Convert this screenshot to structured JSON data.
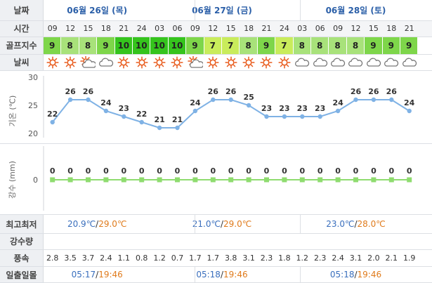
{
  "labels": {
    "date": "날짜",
    "time": "시간",
    "golf": "골프지수",
    "weather": "날씨",
    "temp_axis": "기온 (℃)",
    "rain_axis": "강수 (mm)",
    "minmax": "최고최저",
    "rain_amount": "강수량",
    "wind": "풍속",
    "sun": "일출일몰"
  },
  "days": [
    {
      "date": "06월 26일 (목)",
      "min": "20.9℃",
      "max": "29.0℃",
      "sunrise": "05:17",
      "sunset": "19:46"
    },
    {
      "date": "06월 27일 (금)",
      "min": "21.0℃",
      "max": "29.0℃",
      "sunrise": "05:18",
      "sunset": "19:46"
    },
    {
      "date": "06월 28일 (토)",
      "min": "23.0℃",
      "max": "28.0℃",
      "sunrise": "05:18",
      "sunset": "19:46"
    }
  ],
  "hours": [
    "09",
    "12",
    "15",
    "18",
    "21",
    "24",
    "03",
    "06",
    "09",
    "12",
    "15",
    "18",
    "21",
    "24",
    "03",
    "06",
    "09",
    "12",
    "15",
    "18",
    "21"
  ],
  "golf_index": [
    "9",
    "8",
    "8",
    "9",
    "10",
    "10",
    "10",
    "10",
    "9",
    "7",
    "7",
    "8",
    "9",
    "7",
    "8",
    "8",
    "8",
    "8",
    "9",
    "9",
    "9"
  ],
  "golf_colors": {
    "10": "#35c41d",
    "9": "#7ed64a",
    "8": "#a8e27a",
    "7": "#c9ec5b"
  },
  "weather_icons": [
    "sun-icon",
    "sun-icon",
    "partly-cloudy-icon",
    "cloud-icon",
    "sun-icon",
    "sun-icon",
    "sun-icon",
    "sun-icon",
    "partly-cloudy-icon",
    "sun-icon",
    "sun-icon",
    "sun-icon",
    "sun-icon",
    "sun-icon",
    "cloud-icon",
    "cloud-icon",
    "cloud-icon",
    "cloud-icon",
    "cloud-icon",
    "cloud-icon",
    "cloud-icon"
  ],
  "wind": [
    "2.8",
    "3.5",
    "3.7",
    "2.4",
    "1.1",
    "0.8",
    "1.2",
    "0.7",
    "1.7",
    "1.7",
    "3.8",
    "3.1",
    "2.3",
    "1.8",
    "1.2",
    "2.3",
    "2.4",
    "3.1",
    "2.0",
    "2.1",
    "1.9"
  ],
  "chart_data": [
    {
      "type": "line",
      "title": "",
      "ylabel": "기온 (℃)",
      "ylim": [
        20,
        30
      ],
      "yticks": [
        "20",
        "25",
        "30"
      ],
      "x": [
        "09",
        "12",
        "15",
        "18",
        "21",
        "24",
        "03",
        "06",
        "09",
        "12",
        "15",
        "18",
        "21",
        "24",
        "03",
        "06",
        "09",
        "12",
        "15",
        "18",
        "21"
      ],
      "values": [
        22,
        26,
        26,
        24,
        23,
        22,
        21,
        21,
        24,
        26,
        26,
        25,
        23,
        23,
        23,
        23,
        24,
        26,
        26,
        26,
        24
      ],
      "series_color": "#7fb2e5"
    },
    {
      "type": "line",
      "title": "",
      "ylabel": "강수 (mm)",
      "yticks": [
        "0"
      ],
      "x": [
        "09",
        "12",
        "15",
        "18",
        "21",
        "24",
        "03",
        "06",
        "09",
        "12",
        "15",
        "18",
        "21",
        "24",
        "03",
        "06",
        "09",
        "12",
        "15",
        "18",
        "21"
      ],
      "values": [
        0,
        0,
        0,
        0,
        0,
        0,
        0,
        0,
        0,
        0,
        0,
        0,
        0,
        0,
        0,
        0,
        0,
        0,
        0,
        0,
        0
      ],
      "series_color": "#8fdc6f"
    }
  ]
}
